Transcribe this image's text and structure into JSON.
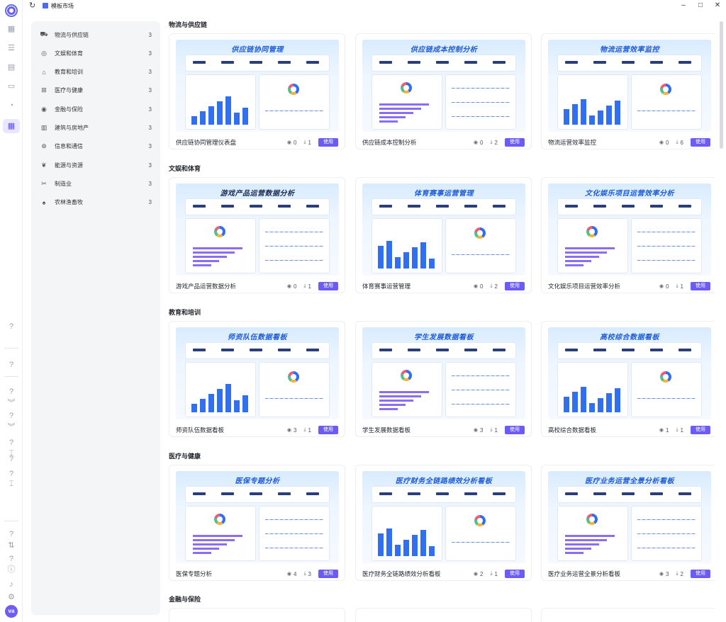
{
  "window": {
    "title": "模板市场",
    "controls": [
      "minimize-icon",
      "maximize-icon",
      "close-icon"
    ]
  },
  "rail": {
    "avatar_initials": "va",
    "icons": [
      "apps-icon",
      "database-icon",
      "chart-icon",
      "folder-icon",
      "compass-icon",
      "template-market-icon"
    ]
  },
  "categories": [
    {
      "label": "物流与供应链",
      "count": "3",
      "icon": "truck-icon"
    },
    {
      "label": "文娱和体育",
      "count": "3",
      "icon": "ball-icon"
    },
    {
      "label": "教育和培训",
      "count": "3",
      "icon": "cap-icon"
    },
    {
      "label": "医疗与健康",
      "count": "3",
      "icon": "medical-icon"
    },
    {
      "label": "金融与保险",
      "count": "3",
      "icon": "coin-icon"
    },
    {
      "label": "建筑与房地产",
      "count": "3",
      "icon": "building-icon"
    },
    {
      "label": "信息和通信",
      "count": "3",
      "icon": "signal-icon"
    },
    {
      "label": "能源与资源",
      "count": "3",
      "icon": "leaf-icon"
    },
    {
      "label": "制造业",
      "count": "3",
      "icon": "tools-icon"
    },
    {
      "label": "农林渔畜牧",
      "count": "3",
      "icon": "plant-icon"
    }
  ],
  "use_label": "使用",
  "sections": [
    {
      "title": "物流与供应链",
      "cards": [
        {
          "name": "供应链协同管理仪表盘",
          "views": "0",
          "downloads": "1",
          "thumb_title": "供应链协同管理"
        },
        {
          "name": "供应链成本控制分析",
          "views": "0",
          "downloads": "2",
          "thumb_title": "供应链成本控制分析"
        },
        {
          "name": "物流运营效率监控",
          "views": "0",
          "downloads": "6",
          "thumb_title": "物流运营效率监控"
        }
      ]
    },
    {
      "title": "文娱和体育",
      "cards": [
        {
          "name": "游戏产品运营数据分析",
          "views": "0",
          "downloads": "1",
          "thumb_title": "游戏产品运营数据分析"
        },
        {
          "name": "体育赛事运营管理",
          "views": "0",
          "downloads": "2",
          "thumb_title": "体育赛事运营管理"
        },
        {
          "name": "文化娱乐项目运营效率分析",
          "views": "0",
          "downloads": "1",
          "thumb_title": "文化娱乐项目运营效率分析"
        }
      ]
    },
    {
      "title": "教育和培训",
      "cards": [
        {
          "name": "师资队伍数据看板",
          "views": "3",
          "downloads": "1",
          "thumb_title": "师资队伍数据看板"
        },
        {
          "name": "学生发展数据看板",
          "views": "3",
          "downloads": "1",
          "thumb_title": "学生发展数据看板"
        },
        {
          "name": "高校综合数据看板",
          "views": "1",
          "downloads": "1",
          "thumb_title": "高校综合数据看板"
        }
      ]
    },
    {
      "title": "医疗与健康",
      "cards": [
        {
          "name": "医保专题分析",
          "views": "4",
          "downloads": "3",
          "thumb_title": "医保专题分析"
        },
        {
          "name": "医疗财务全链路绩效分析看板",
          "views": "2",
          "downloads": "1",
          "thumb_title": "医疗财务全链路绩效分析看板"
        },
        {
          "name": "医疗业务运营全景分析看板",
          "views": "3",
          "downloads": "2",
          "thumb_title": "医疗业务运营全景分析看板"
        }
      ]
    },
    {
      "title": "金融与保险",
      "cards": []
    }
  ]
}
